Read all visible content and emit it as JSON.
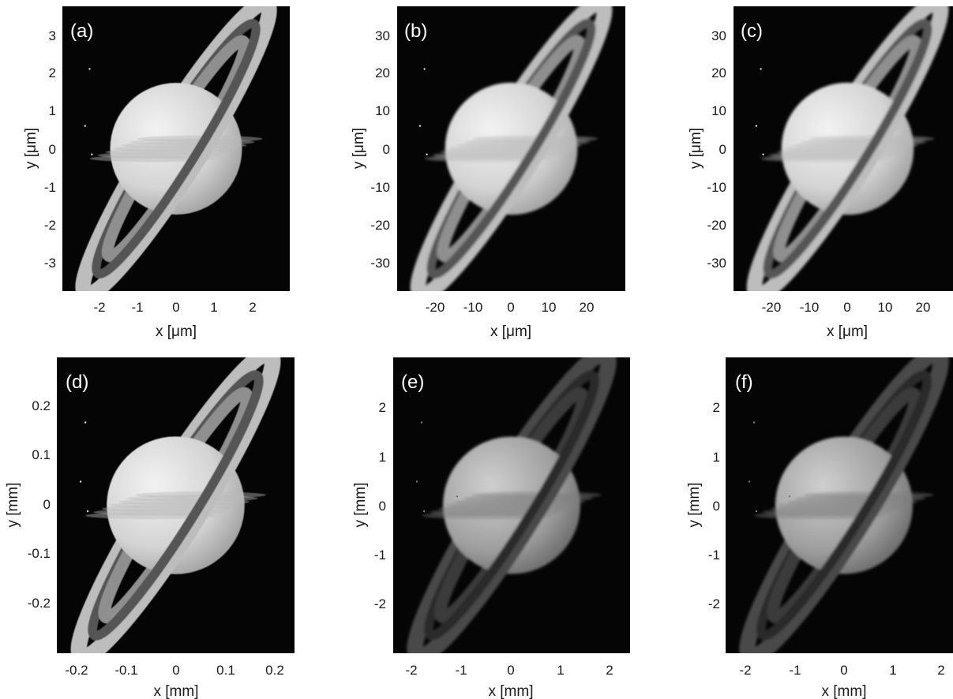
{
  "figure": {
    "panels": [
      {
        "label": "(a)",
        "xlabel": "x [μm]",
        "ylabel": "y [μm]",
        "xticks": [
          "-2",
          "-1",
          "0",
          "1",
          "2"
        ],
        "yticks": [
          "3",
          "2",
          "1",
          "0",
          "-1",
          "-2",
          "-3"
        ],
        "brightness": "high",
        "ring_side": "near-right"
      },
      {
        "label": "(b)",
        "xlabel": "x [μm]",
        "ylabel": "y [μm]",
        "xticks": [
          "-20",
          "-10",
          "0",
          "10",
          "20"
        ],
        "yticks": [
          "30",
          "20",
          "10",
          "0",
          "-10",
          "-20",
          "-30"
        ],
        "brightness": "high-blurred",
        "ring_side": "near-left"
      },
      {
        "label": "(c)",
        "xlabel": "x [μm]",
        "ylabel": "y [μm]",
        "xticks": [
          "-20",
          "-10",
          "0",
          "10",
          "20"
        ],
        "yticks": [
          "30",
          "20",
          "10",
          "0",
          "-10",
          "-20",
          "-30"
        ],
        "brightness": "high-blurred",
        "ring_side": "near-left"
      },
      {
        "label": "(d)",
        "xlabel": "x [mm]",
        "ylabel": "y [mm]",
        "xticks": [
          "-0.2",
          "-0.1",
          "0",
          "0.1",
          "0.2"
        ],
        "yticks": [
          "0.2",
          "0.1",
          "0",
          "-0.1",
          "-0.2"
        ],
        "brightness": "high",
        "ring_side": "near-right"
      },
      {
        "label": "(e)",
        "xlabel": "x [mm]",
        "ylabel": "y [mm]",
        "xticks": [
          "-2",
          "-1",
          "0",
          "1",
          "2"
        ],
        "yticks": [
          "2",
          "1",
          "0",
          "-1",
          "-2"
        ],
        "brightness": "dim",
        "ring_side": "near-left"
      },
      {
        "label": "(f)",
        "xlabel": "x [mm]",
        "ylabel": "y [mm]",
        "xticks": [
          "-2",
          "-1",
          "0",
          "1",
          "2"
        ],
        "yticks": [
          "2",
          "1",
          "0",
          "-1",
          "-2"
        ],
        "brightness": "dim",
        "ring_side": "near-left"
      }
    ]
  }
}
